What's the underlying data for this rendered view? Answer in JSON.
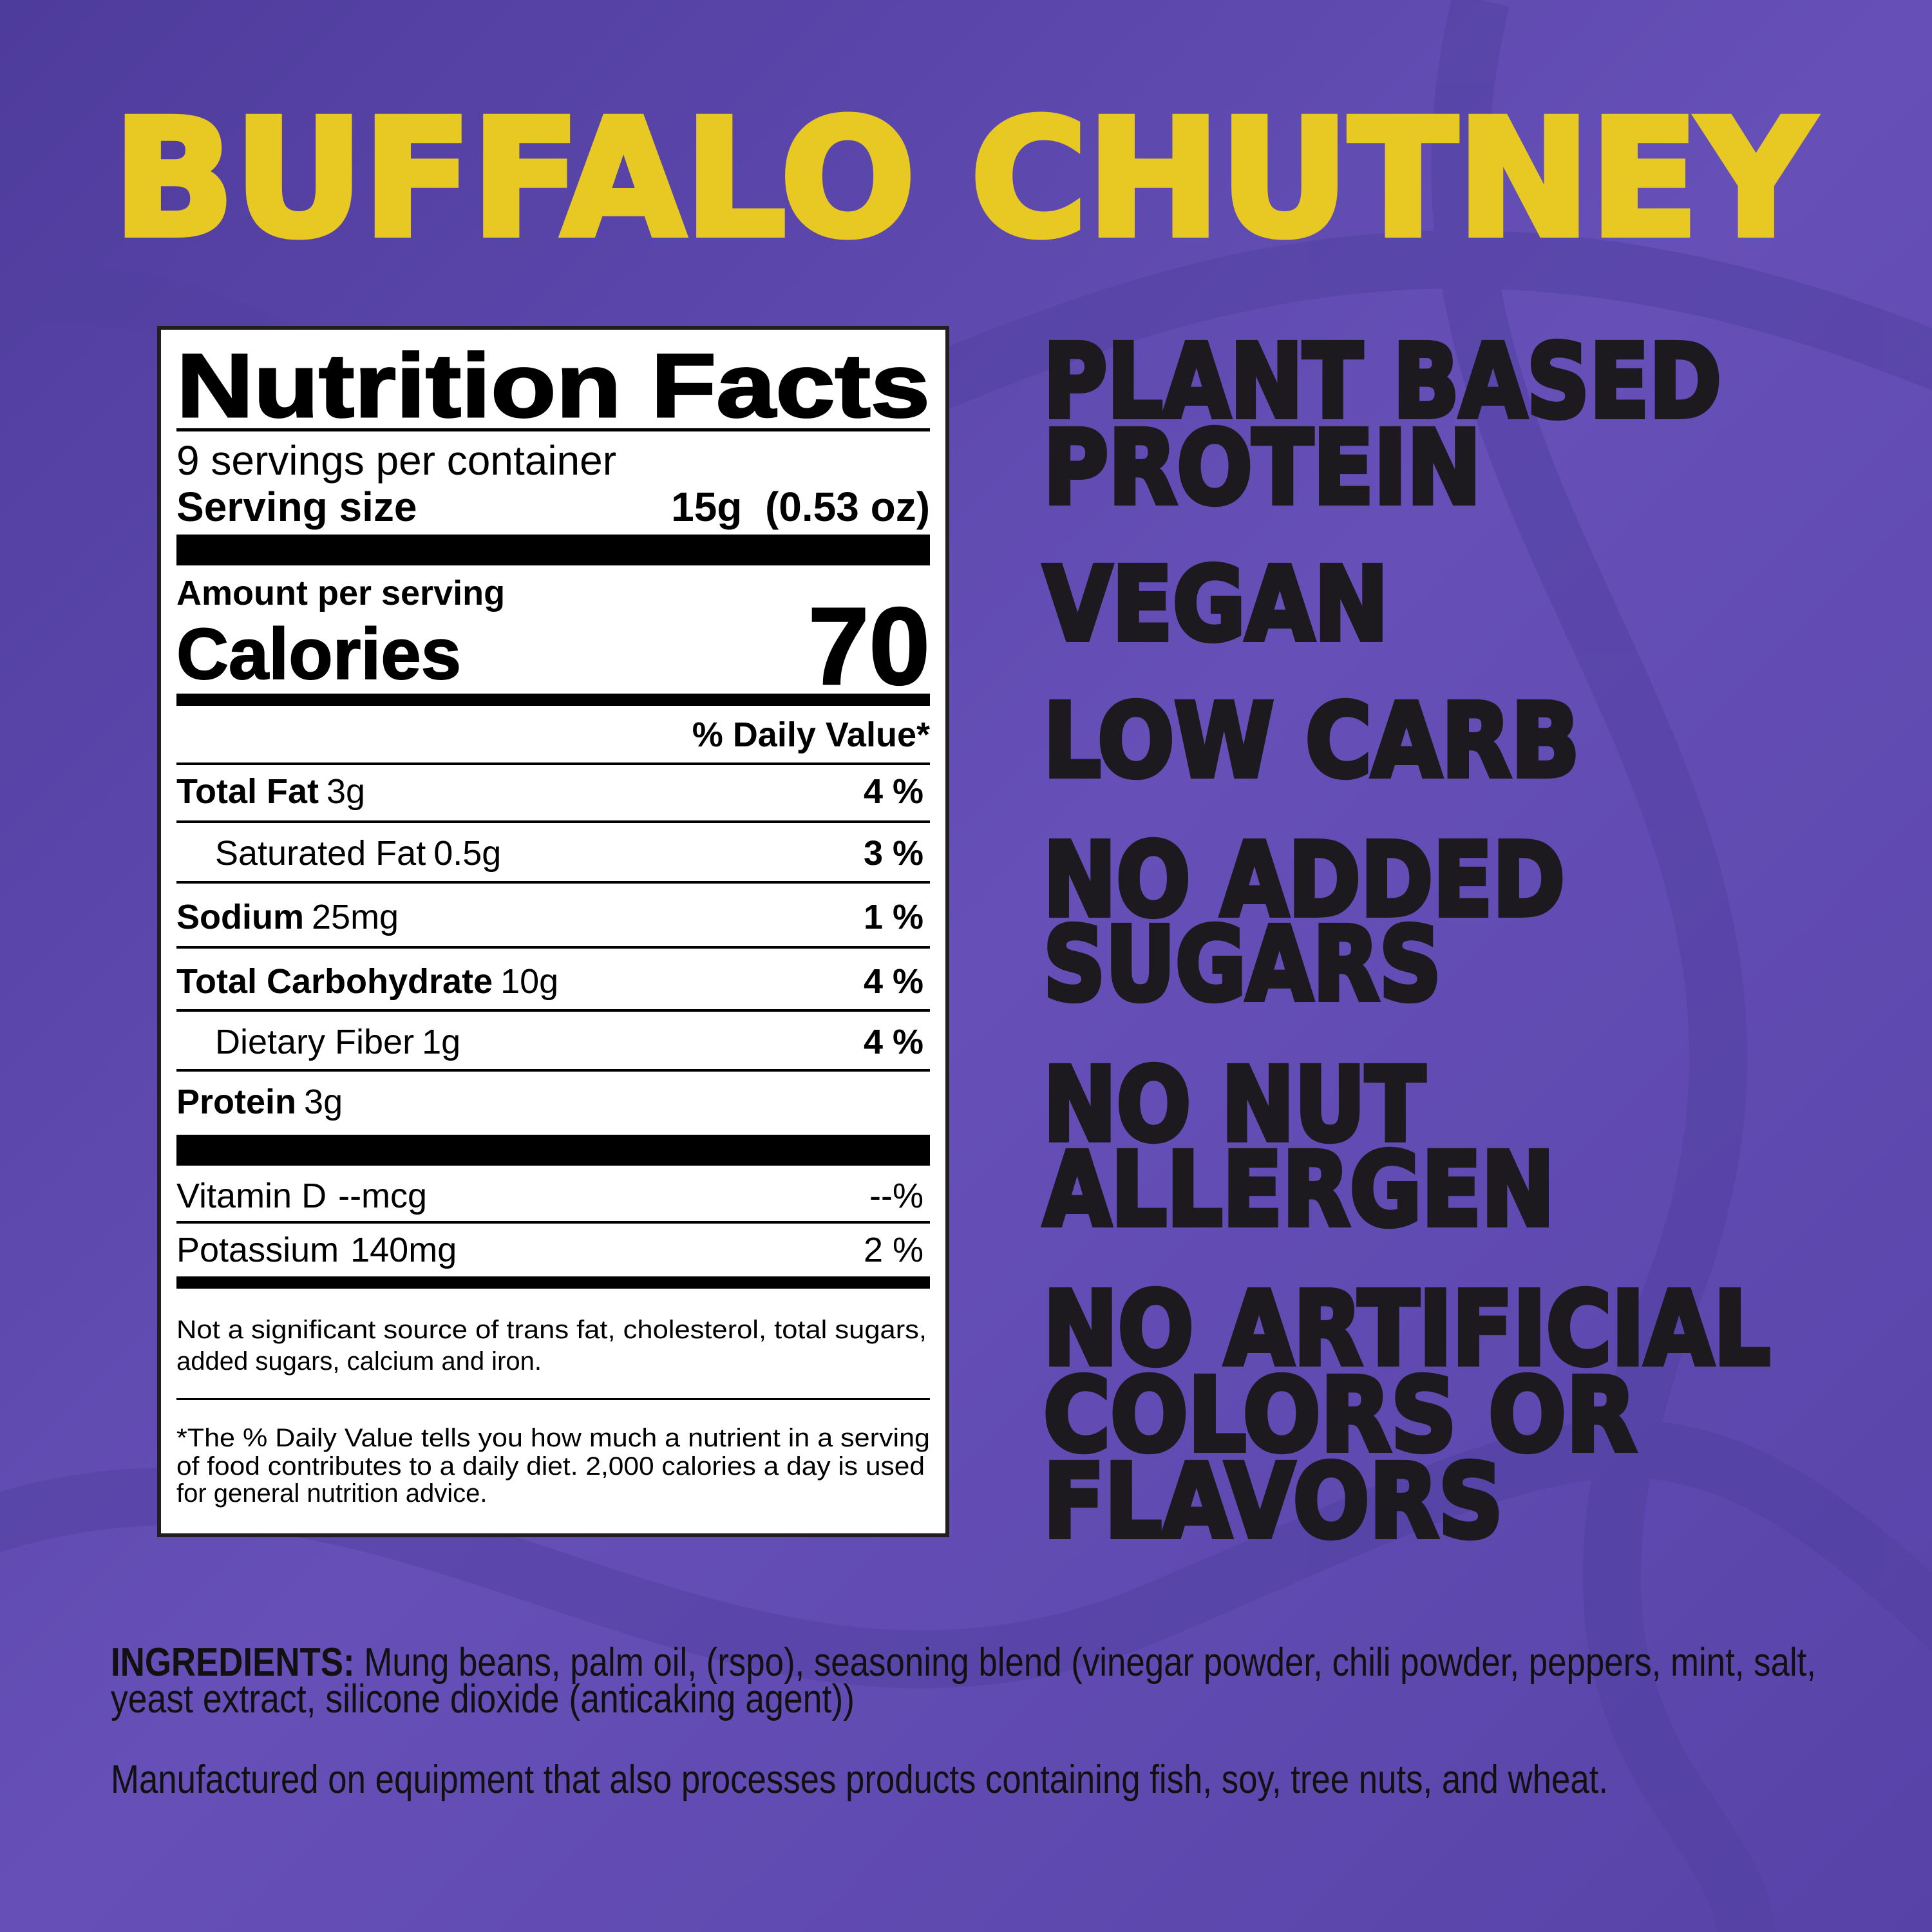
{
  "colors": {
    "background": "#5a45a6",
    "title": "#e8c823",
    "text": "#1c1a1f",
    "label_bg": "#ffffff"
  },
  "title": "BUFFALO CHUTNEY",
  "nutrition": {
    "heading": "Nutrition Facts",
    "servings": "9 servings per container",
    "serving_size_label": "Serving size",
    "serving_size_value": "15g  (0.53 oz)",
    "amount_per_serving": "Amount per serving",
    "calories_label": "Calories",
    "calories_value": "70",
    "dv_header": "% Daily Value*",
    "rows": [
      {
        "name": "Total Fat",
        "amount": "3g",
        "dv": "4 %"
      },
      {
        "name": "Saturated Fat",
        "amount": "0.5g",
        "dv": "3 %"
      },
      {
        "name": "Sodium",
        "amount": "25mg",
        "dv": "1 %"
      },
      {
        "name": "Total Carbohydrate",
        "amount": "10g",
        "dv": "4 %"
      },
      {
        "name": "Dietary Fiber",
        "amount": "1g",
        "dv": "4   %"
      },
      {
        "name": "Protein",
        "amount": "3g",
        "dv": ""
      }
    ],
    "vitamins": [
      {
        "name": "Vitamin D",
        "amount": "--mcg",
        "dv": "--%"
      },
      {
        "name": "Potassium",
        "amount": "140mg",
        "dv": "2 %"
      }
    ],
    "note_lines": [
      "Not a significant source of trans fat, cholesterol, total sugars,",
      "added sugars, calcium and iron."
    ],
    "footnote_lines": [
      "*The % Daily Value tells you how much a nutrient in a serving",
      "of food contributes to a daily diet. 2,000 calories a day is used",
      "for general nutrition advice."
    ]
  },
  "claims": [
    "PLANT BASED",
    "PROTEIN",
    "VEGAN",
    "LOW CARB",
    "NO ADDED",
    "SUGARS",
    "NO NUT",
    "ALLERGEN",
    "NO ARTIFICIAL",
    "COLORS OR",
    "FLAVORS"
  ],
  "ingredients": {
    "label": "INGREDIENTS:",
    "line1": "Mung beans, palm oil, (rspo), seasoning blend (vinegar powder, chili powder, peppers, mint, salt,",
    "line2": "yeast extract, silicone dioxide (anticaking agent))",
    "allergen": "Manufactured on equipment that also processes products containing fish, soy, tree nuts, and wheat."
  }
}
